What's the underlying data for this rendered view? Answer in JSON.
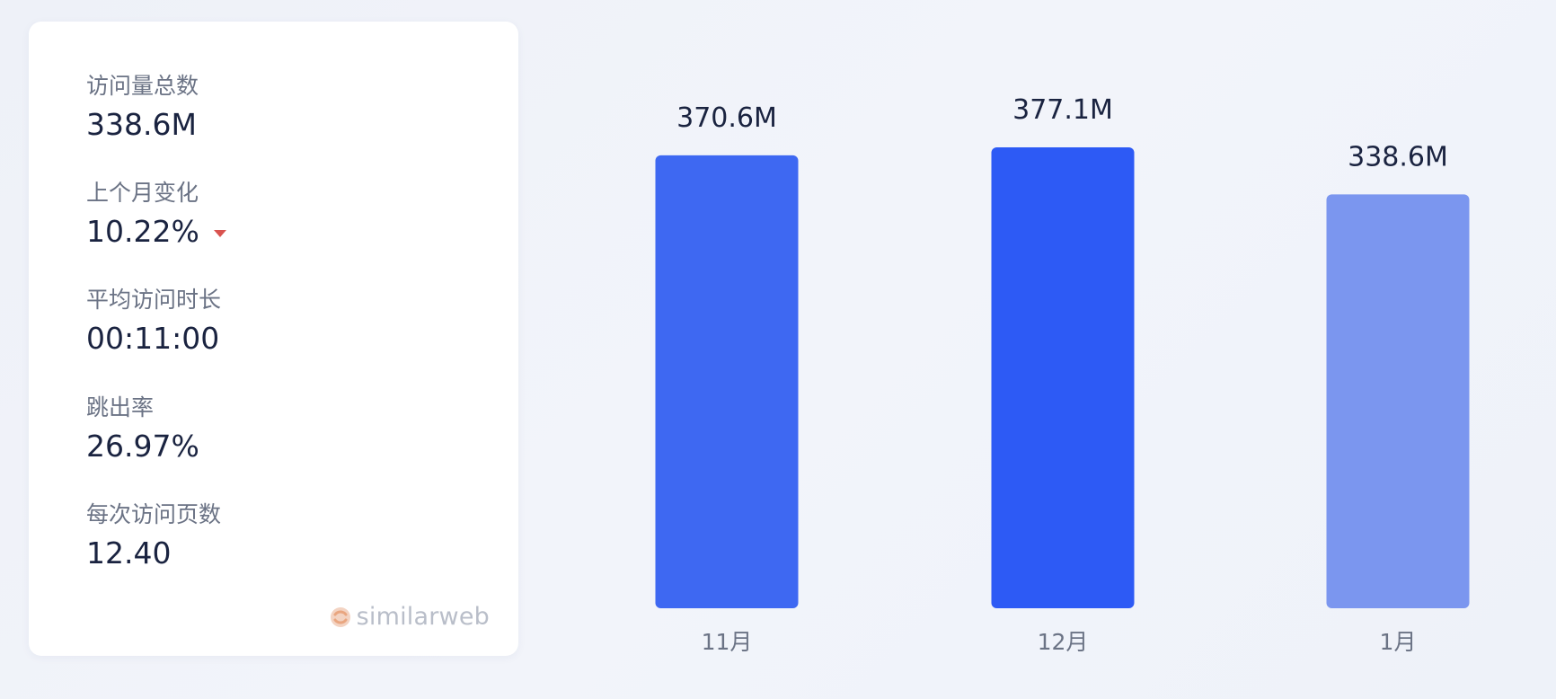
{
  "stats": {
    "items": [
      {
        "label": "访问量总数",
        "value": "338.6M"
      },
      {
        "label": "上个月变化",
        "value": "10.22%",
        "trend": "down"
      },
      {
        "label": "平均访问时长",
        "value": "00:11:00"
      },
      {
        "label": "跳出率",
        "value": "26.97%"
      },
      {
        "label": "每次访问页数",
        "value": "12.40"
      }
    ],
    "brand": "similarweb",
    "down_color": "#d9534f",
    "brand_icon": "similarweb-logo-icon"
  },
  "chart_data": {
    "type": "bar",
    "categories": [
      "11月",
      "12月",
      "1月"
    ],
    "values": [
      370.6,
      377.1,
      338.6
    ],
    "value_labels": [
      "370.6M",
      "377.1M",
      "338.6M"
    ],
    "title": "",
    "xlabel": "",
    "ylabel": "",
    "unit": "M",
    "ylim": [
      0,
      377.1
    ],
    "grid": false,
    "legend": "none",
    "colors": [
      "#3e68f2",
      "#2d5af5",
      "#7b96ef"
    ]
  }
}
